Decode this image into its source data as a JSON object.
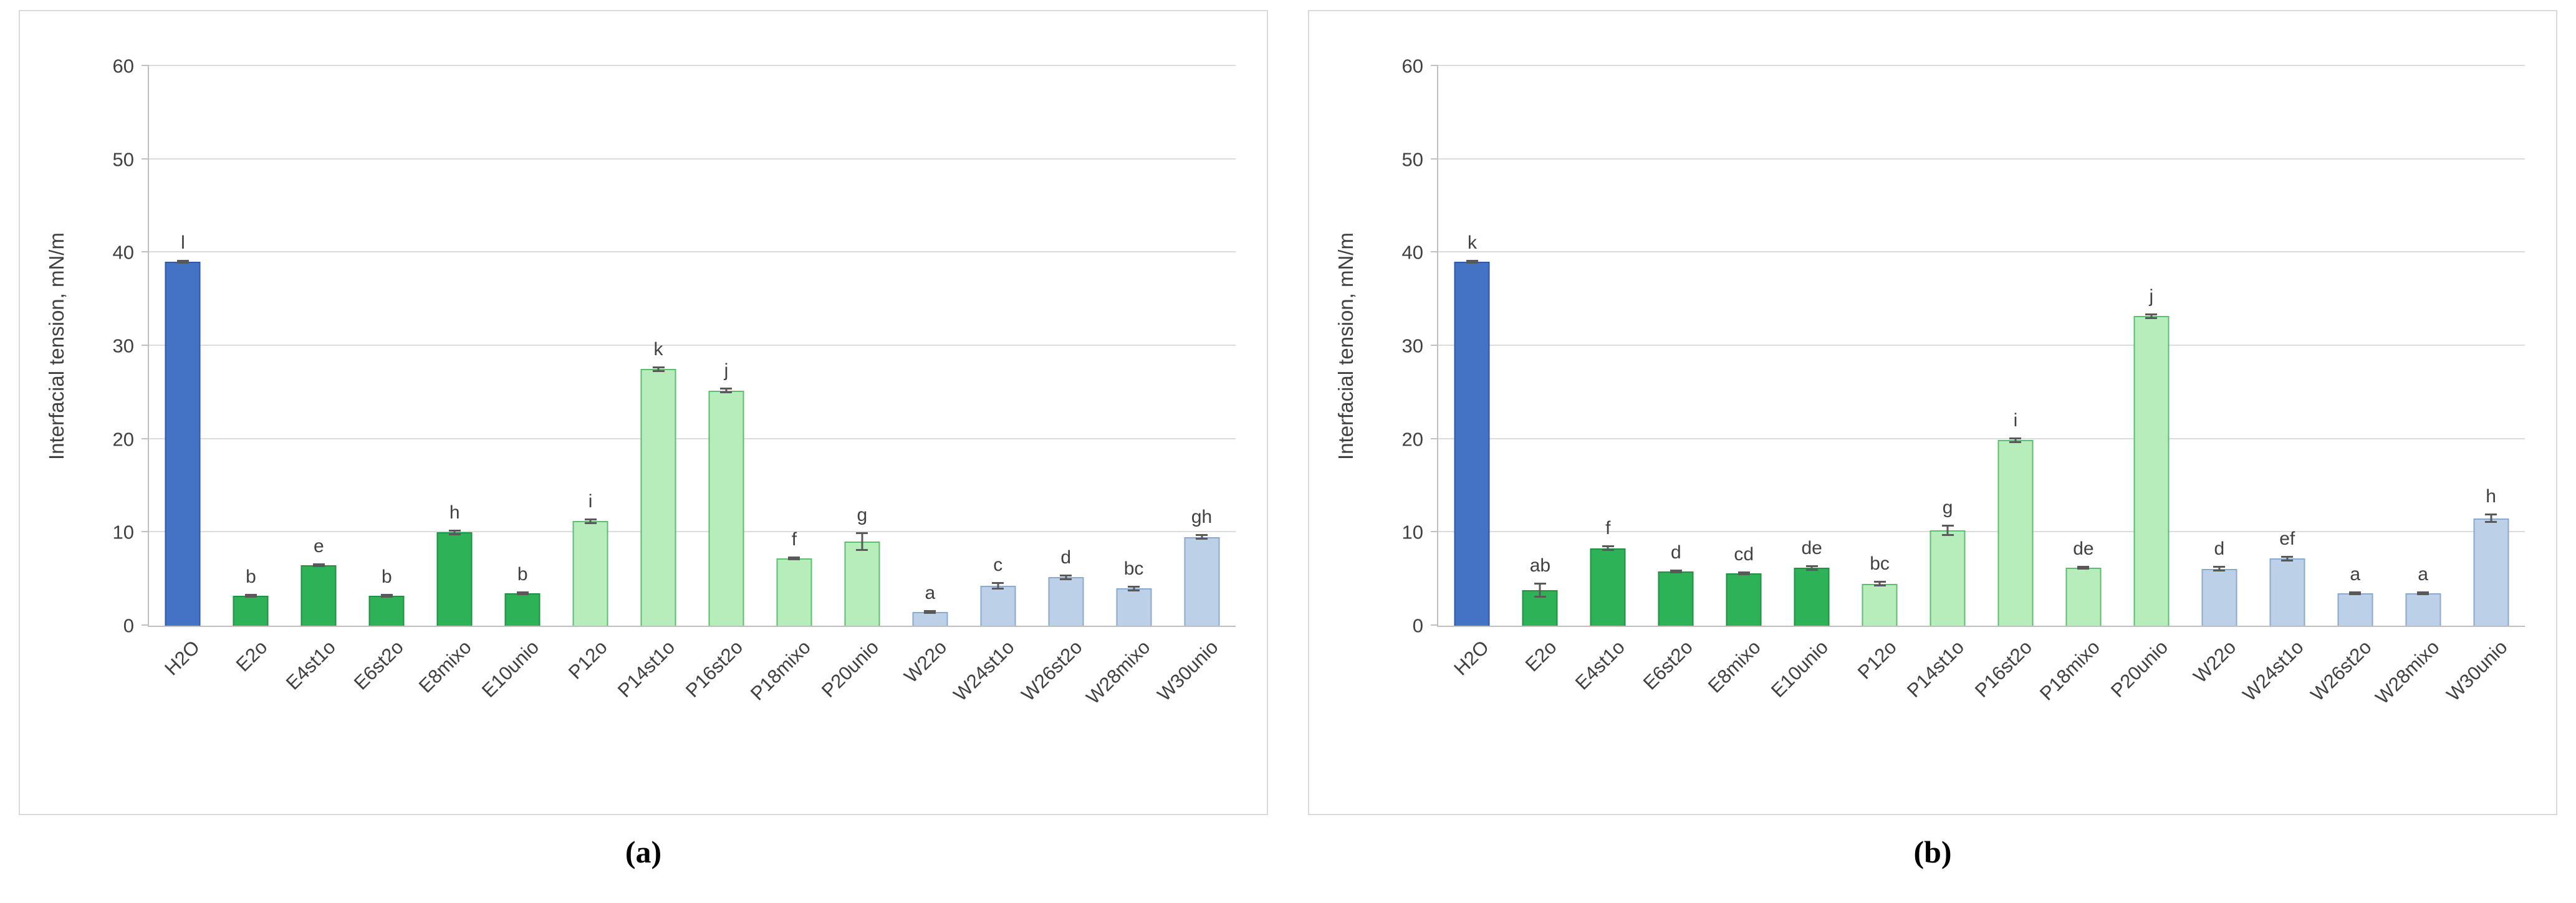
{
  "figure": {
    "panels": [
      {
        "caption": "(a)"
      },
      {
        "caption": "(b)"
      }
    ]
  },
  "colors": {
    "h2o": {
      "fill": "#4472c4",
      "border": "#2e59a8"
    },
    "e": {
      "fill": "#2db258",
      "border": "#1f9143"
    },
    "p": {
      "fill": "#b7edba",
      "border": "#5dbd6e"
    },
    "w": {
      "fill": "#bcd1e8",
      "border": "#8aa9cc"
    },
    "error": "#595959",
    "text": "#404040",
    "gridline": "#dcdcdc",
    "axis": "#bfbfbf"
  },
  "chart_data": [
    {
      "type": "bar",
      "title": "",
      "ylabel": "Interfacial tension, mN/m",
      "xlabel": "",
      "ylim": [
        0,
        60
      ],
      "yticks": [
        0,
        10,
        20,
        30,
        40,
        50,
        60
      ],
      "grid": true,
      "legend": "none",
      "categories": [
        "H2O",
        "E2o",
        "E4st1o",
        "E6st2o",
        "E8mixo",
        "E10unio",
        "P12o",
        "P14st1o",
        "P16st2o",
        "P18mixo",
        "P20unio",
        "W22o",
        "W24st1o",
        "W26st2o",
        "W28mixo",
        "W30unio"
      ],
      "values": [
        39.0,
        3.2,
        6.5,
        3.2,
        10.0,
        3.5,
        11.2,
        27.5,
        25.2,
        7.2,
        9.0,
        1.5,
        4.3,
        5.2,
        4.0,
        9.5
      ],
      "errors": [
        0.2,
        0.2,
        0.2,
        0.2,
        0.3,
        0.2,
        0.3,
        0.3,
        0.3,
        0.2,
        1.0,
        0.2,
        0.4,
        0.3,
        0.3,
        0.3
      ],
      "bar_labels": [
        "l",
        "b",
        "e",
        "b",
        "h",
        "b",
        "i",
        "k",
        "j",
        "f",
        "g",
        "a",
        "c",
        "d",
        "bc",
        "gh"
      ],
      "bar_groups": [
        "h2o",
        "e",
        "e",
        "e",
        "e",
        "e",
        "p",
        "p",
        "p",
        "p",
        "p",
        "w",
        "w",
        "w",
        "w",
        "w"
      ]
    },
    {
      "type": "bar",
      "title": "",
      "ylabel": "Interfacial tension, mN/m",
      "xlabel": "",
      "ylim": [
        0,
        60
      ],
      "yticks": [
        0,
        10,
        20,
        30,
        40,
        50,
        60
      ],
      "grid": true,
      "legend": "none",
      "categories": [
        "H2O",
        "E2o",
        "E4st1o",
        "E6st2o",
        "E8mixo",
        "E10unio",
        "P12o",
        "P14st1o",
        "P16st2o",
        "P18mixo",
        "P20unio",
        "W22o",
        "W24st1o",
        "W26st2o",
        "W28mixo",
        "W30unio"
      ],
      "values": [
        39.0,
        3.8,
        8.3,
        5.8,
        5.6,
        6.2,
        4.5,
        10.2,
        19.9,
        6.2,
        33.2,
        6.1,
        7.2,
        3.5,
        3.5,
        11.5
      ],
      "errors": [
        0.2,
        0.8,
        0.3,
        0.2,
        0.2,
        0.3,
        0.3,
        0.6,
        0.3,
        0.2,
        0.3,
        0.3,
        0.3,
        0.2,
        0.2,
        0.5
      ],
      "bar_labels": [
        "k",
        "ab",
        "f",
        "d",
        "cd",
        "de",
        "bc",
        "g",
        "i",
        "de",
        "j",
        "d",
        "ef",
        "a",
        "a",
        "h"
      ],
      "bar_groups": [
        "h2o",
        "e",
        "e",
        "e",
        "e",
        "e",
        "p",
        "p",
        "p",
        "p",
        "p",
        "w",
        "w",
        "w",
        "w",
        "w"
      ]
    }
  ]
}
